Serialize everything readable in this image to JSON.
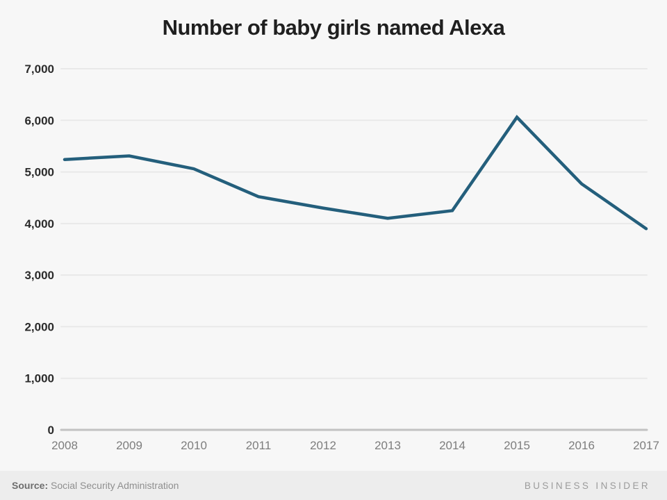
{
  "page": {
    "background_color": "#f7f7f7",
    "footer_background_color": "#ededed"
  },
  "chart_data": {
    "type": "line",
    "title": "Number of baby girls named Alexa",
    "categories": [
      "2008",
      "2009",
      "2010",
      "2011",
      "2012",
      "2013",
      "2014",
      "2015",
      "2016",
      "2017"
    ],
    "values": [
      5240,
      5310,
      5060,
      4520,
      4300,
      4100,
      4250,
      6060,
      4770,
      3900
    ],
    "xlabel": "",
    "ylabel": "",
    "ylim": [
      0,
      7000
    ],
    "y_ticks": [
      0,
      1000,
      2000,
      3000,
      4000,
      5000,
      6000,
      7000
    ],
    "grid": "horizontal-only",
    "legend_position": "none",
    "line_color": "#245f7c",
    "gridline_color": "#e9e9e9",
    "baseline_color": "#c2c2c2"
  },
  "footer": {
    "source_label": "Source:",
    "source_value": "Social Security Administration",
    "brand": "BUSINESS INSIDER"
  }
}
